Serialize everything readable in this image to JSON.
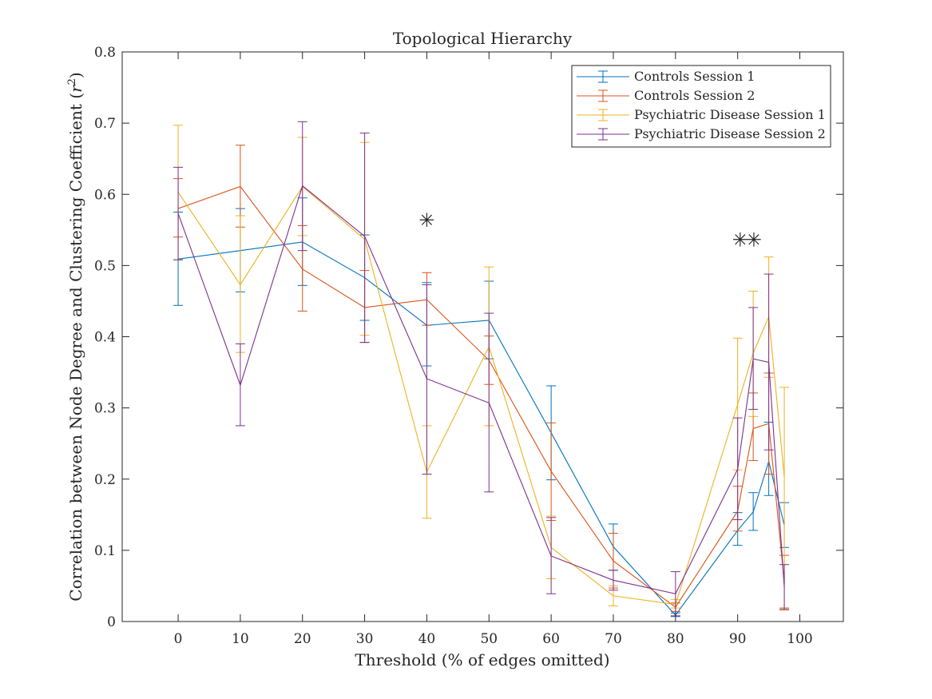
{
  "chart_data": {
    "type": "line",
    "title": "Topological Hierarchy",
    "xlabel": "Threshold (% of edges omitted)",
    "ylabel_main": "Correlation between Node Degree and Clustering Coefficient (",
    "ylabel_var": "r",
    "ylabel_sup": "2",
    "ylabel_close": ")",
    "xlim": [
      -9,
      107
    ],
    "ylim": [
      0,
      0.8
    ],
    "xticks": [
      0,
      10,
      20,
      30,
      40,
      50,
      60,
      70,
      80,
      90,
      100
    ],
    "yticks": [
      0,
      0.1,
      0.2,
      0.3,
      0.4,
      0.5,
      0.6,
      0.7,
      0.8
    ],
    "ytick_labels": [
      "0",
      "0.1",
      "0.2",
      "0.3",
      "0.4",
      "0.5",
      "0.6",
      "0.7",
      "0.8"
    ],
    "grid": false,
    "legend_position": "top-right",
    "x": [
      0,
      10,
      20,
      30,
      40,
      50,
      60,
      70,
      80,
      90,
      92.5,
      95,
      97.5
    ],
    "series": [
      {
        "name": "Controls Session 1",
        "color": "#0072BD",
        "values": [
          0.509,
          0.521,
          0.533,
          0.483,
          0.416,
          0.423,
          0.265,
          0.105,
          0.009,
          0.128,
          0.154,
          0.225,
          0.135
        ],
        "lower": [
          0.444,
          0.463,
          0.472,
          0.423,
          0.359,
          0.369,
          0.199,
          0.072,
          0.007,
          0.107,
          0.128,
          0.177,
          0.104
        ],
        "upper": [
          0.575,
          0.58,
          0.595,
          0.543,
          0.476,
          0.478,
          0.331,
          0.137,
          0.012,
          0.153,
          0.181,
          0.28,
          0.167
        ]
      },
      {
        "name": "Controls Session 2",
        "color": "#D95319",
        "values": [
          0.58,
          0.611,
          0.495,
          0.441,
          0.452,
          0.367,
          0.211,
          0.085,
          0.02,
          0.155,
          0.271,
          0.278,
          0.055
        ],
        "lower": [
          0.54,
          0.554,
          0.436,
          0.392,
          0.416,
          0.333,
          0.142,
          0.047,
          0.014,
          0.127,
          0.226,
          0.207,
          0.019
        ],
        "upper": [
          0.622,
          0.669,
          0.556,
          0.493,
          0.49,
          0.401,
          0.279,
          0.124,
          0.026,
          0.19,
          0.321,
          0.349,
          0.093
        ]
      },
      {
        "name": "Psychiatric Disease Session 1",
        "color": "#EDB120",
        "values": [
          0.603,
          0.473,
          0.611,
          0.537,
          0.21,
          0.386,
          0.104,
          0.036,
          0.024,
          0.305,
          0.377,
          0.428,
          0.203
        ],
        "lower": [
          0.508,
          0.378,
          0.542,
          0.402,
          0.145,
          0.275,
          0.06,
          0.022,
          0.019,
          0.213,
          0.288,
          0.343,
          0.016
        ],
        "upper": [
          0.697,
          0.57,
          0.68,
          0.673,
          0.275,
          0.498,
          0.148,
          0.05,
          0.031,
          0.398,
          0.464,
          0.512,
          0.329
        ]
      },
      {
        "name": "Psychiatric Disease Session 2",
        "color": "#7E2F8E",
        "values": [
          0.573,
          0.332,
          0.612,
          0.541,
          0.341,
          0.307,
          0.092,
          0.058,
          0.039,
          0.214,
          0.369,
          0.364,
          0.048
        ],
        "lower": [
          0.508,
          0.275,
          0.521,
          0.392,
          0.207,
          0.182,
          0.039,
          0.044,
          0.008,
          0.143,
          0.298,
          0.241,
          0.017
        ],
        "upper": [
          0.638,
          0.39,
          0.702,
          0.686,
          0.473,
          0.433,
          0.146,
          0.072,
          0.07,
          0.286,
          0.441,
          0.488,
          0.08
        ]
      }
    ],
    "annotations": [
      {
        "text": "✳",
        "x": 40,
        "y": 0.563
      },
      {
        "text": "✳",
        "x": 90.4,
        "y": 0.536
      },
      {
        "text": "✳",
        "x": 92.6,
        "y": 0.536
      }
    ]
  }
}
